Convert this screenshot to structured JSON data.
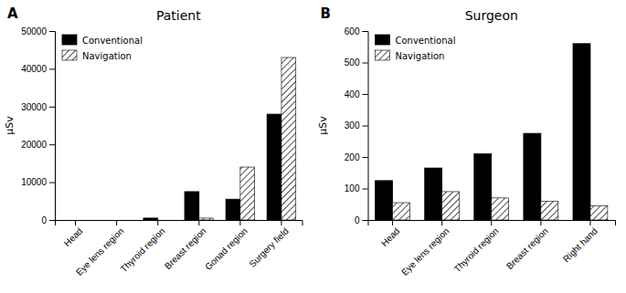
{
  "chart_data": [
    {
      "type": "bar",
      "title": "Patient",
      "annotations": [
        "A"
      ],
      "categories": [
        "Head",
        "Eye lens region",
        "Thyroid region",
        "Breast region",
        "Gonad region",
        "Surgery field"
      ],
      "series": [
        {
          "name": "Conventional",
          "color": "#000000",
          "values": [
            0,
            0,
            500,
            7500,
            5500,
            28000
          ]
        },
        {
          "name": "Navigation",
          "color": "#ffffff",
          "values": [
            0,
            0,
            0,
            500,
            14000,
            43000
          ]
        }
      ],
      "ylabel": "μSv",
      "ylim": [
        0,
        50000
      ],
      "yticks": [
        0,
        10000,
        20000,
        30000,
        40000,
        50000
      ],
      "legend": "upper left",
      "grid": false
    },
    {
      "type": "bar",
      "title": "Surgeon",
      "annotations": [
        "B"
      ],
      "categories": [
        "Head",
        "Eye lens region",
        "Thyroid region",
        "Breast region",
        "Right hand"
      ],
      "series": [
        {
          "name": "Conventional",
          "color": "#000000",
          "values": [
            125,
            165,
            210,
            275,
            560
          ]
        },
        {
          "name": "Navigation",
          "color": "#ffffff",
          "values": [
            55,
            90,
            70,
            60,
            45
          ]
        }
      ],
      "ylabel": "μSv",
      "ylim": [
        0,
        600
      ],
      "yticks": [
        0,
        100,
        200,
        300,
        400,
        500,
        600
      ],
      "legend": "upper left",
      "grid": false
    }
  ]
}
